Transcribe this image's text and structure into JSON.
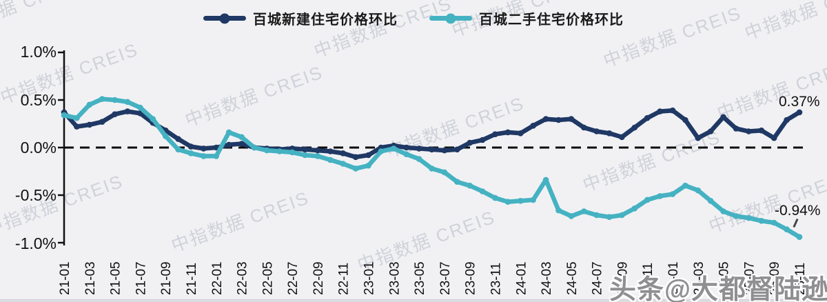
{
  "watermark": {
    "text": "中指数据 CREIS",
    "credit_overlay": "头条@大都督陆逊"
  },
  "legend": {
    "items": [
      {
        "label": "百城新建住宅价格环比",
        "color": "#1f3864"
      },
      {
        "label": "百城二手住宅价格环比",
        "color": "#45b2c2"
      }
    ]
  },
  "y_axis": {
    "labels": [
      "1.0%",
      "0.5%",
      "0.0%",
      "-0.5%",
      "-1.0%"
    ],
    "values": [
      1.0,
      0.5,
      0.0,
      -0.5,
      -1.0
    ]
  },
  "end_labels": {
    "new_homes": "0.37%",
    "second_hand": "-0.94%"
  },
  "chart_data": {
    "type": "line",
    "title": "",
    "xlabel": "",
    "ylabel": "",
    "ylim": [
      -1.0,
      1.0
    ],
    "zero_line": "dashed",
    "legend_position": "top-center",
    "x": [
      "21-01",
      "21-02",
      "21-03",
      "21-04",
      "21-05",
      "21-06",
      "21-07",
      "21-08",
      "21-09",
      "21-10",
      "21-11",
      "21-12",
      "22-01",
      "22-02",
      "22-03",
      "22-04",
      "22-05",
      "22-06",
      "22-07",
      "22-08",
      "22-09",
      "22-10",
      "22-11",
      "22-12",
      "23-01",
      "23-02",
      "23-03",
      "23-04",
      "23-05",
      "23-06",
      "23-07",
      "23-08",
      "23-09",
      "23-10",
      "23-11",
      "23-12",
      "24-01",
      "24-02",
      "24-03",
      "24-04",
      "24-05",
      "24-06",
      "24-07",
      "24-08",
      "24-09",
      "24-10",
      "24-11",
      "24-12",
      "25-01",
      "25-02",
      "25-03",
      "25-04",
      "25-05",
      "25-06",
      "25-07",
      "25-08",
      "25-09",
      "25-10",
      "25-11"
    ],
    "x_tick_labels": [
      "21-01",
      "21-03",
      "21-05",
      "21-07",
      "21-09",
      "21-11",
      "22-01",
      "22-03",
      "22-05",
      "22-07",
      "22-09",
      "22-11",
      "23-01",
      "23-03",
      "23-05",
      "23-07",
      "23-09",
      "23-11",
      "24-01",
      "24-03",
      "24-05",
      "24-07",
      "24-09",
      "24-11",
      "25-01",
      "25-03",
      "25-05",
      "25-07",
      "25-09",
      "25-11"
    ],
    "series": [
      {
        "name": "百城新建住宅价格环比",
        "color": "#1f3864",
        "values": [
          0.37,
          0.22,
          0.24,
          0.27,
          0.35,
          0.38,
          0.36,
          0.26,
          0.18,
          0.09,
          0.01,
          -0.01,
          0.0,
          0.03,
          0.04,
          0.0,
          -0.01,
          -0.02,
          -0.01,
          -0.02,
          -0.03,
          -0.04,
          -0.06,
          -0.1,
          -0.08,
          0.0,
          0.02,
          0.0,
          -0.01,
          -0.02,
          -0.03,
          -0.02,
          0.05,
          0.08,
          0.14,
          0.16,
          0.15,
          0.23,
          0.3,
          0.29,
          0.3,
          0.21,
          0.17,
          0.15,
          0.11,
          0.21,
          0.31,
          0.38,
          0.39,
          0.29,
          0.1,
          0.17,
          0.32,
          0.2,
          0.17,
          0.18,
          0.1,
          0.29,
          0.37
        ]
      },
      {
        "name": "百城二手住宅价格环比",
        "color": "#45b2c2",
        "values": [
          0.34,
          0.31,
          0.45,
          0.51,
          0.5,
          0.48,
          0.42,
          0.3,
          0.12,
          -0.02,
          -0.06,
          -0.09,
          -0.09,
          0.16,
          0.11,
          0.0,
          -0.03,
          -0.04,
          -0.05,
          -0.08,
          -0.09,
          -0.13,
          -0.17,
          -0.22,
          -0.19,
          -0.04,
          -0.01,
          -0.07,
          -0.12,
          -0.22,
          -0.26,
          -0.36,
          -0.4,
          -0.46,
          -0.53,
          -0.57,
          -0.56,
          -0.55,
          -0.34,
          -0.66,
          -0.72,
          -0.67,
          -0.71,
          -0.73,
          -0.71,
          -0.64,
          -0.55,
          -0.51,
          -0.49,
          -0.4,
          -0.45,
          -0.56,
          -0.67,
          -0.72,
          -0.74,
          -0.77,
          -0.79,
          -0.86,
          -0.94
        ]
      }
    ]
  }
}
